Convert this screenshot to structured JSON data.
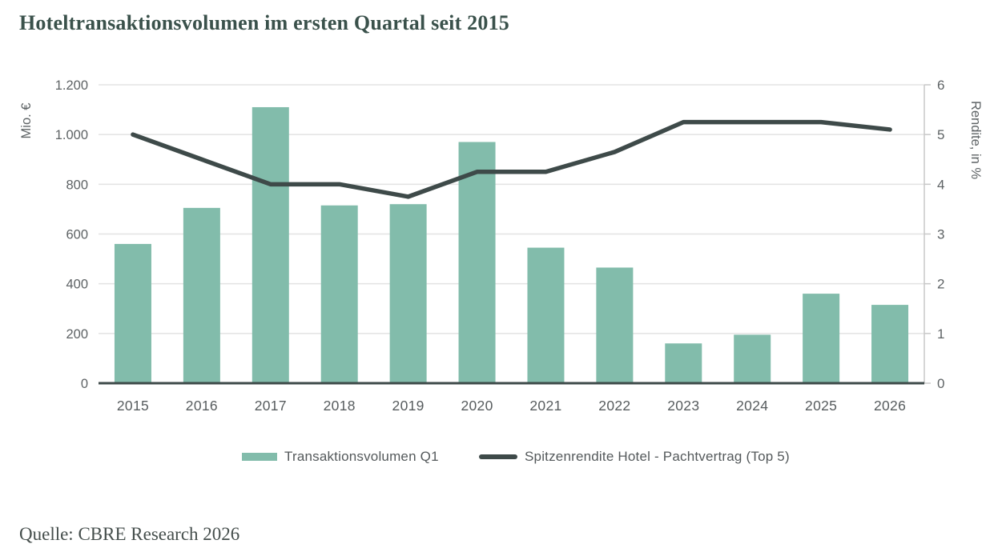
{
  "title": "Hoteltransaktionsvolumen im ersten Quartal seit 2015",
  "source": "Quelle: CBRE Research 2026",
  "colors": {
    "bar": "#82bcab",
    "line": "#3e4a49",
    "grid": "#e3e3e3",
    "axis_baseline": "#3e4a49",
    "right_axis_line": "#c8c8c8",
    "tick_label": "#5e6365",
    "x_label": "#575c5e",
    "legend_text": "#54595b",
    "title_text": "#3a514b",
    "source_text": "#454e4c"
  },
  "chart_data": {
    "type": "bar",
    "subtype": "bar+line combo",
    "title": "Hoteltransaktionsvolumen im ersten Quartal seit 2015",
    "categories": [
      "2015",
      "2016",
      "2017",
      "2018",
      "2019",
      "2020",
      "2021",
      "2022",
      "2023",
      "2024",
      "2025",
      "2026"
    ],
    "series": [
      {
        "name": "Transaktionsvolumen Q1",
        "type": "bar",
        "axis": "left",
        "values": [
          560,
          705,
          1110,
          715,
          720,
          970,
          545,
          465,
          160,
          195,
          360,
          315
        ]
      },
      {
        "name": "Spitzenrendite Hotel - Pachtvertrag (Top 5)",
        "type": "line",
        "axis": "right",
        "values": [
          5.0,
          4.5,
          4.0,
          4.0,
          3.75,
          4.25,
          4.25,
          4.65,
          5.25,
          5.25,
          5.25,
          5.1
        ]
      }
    ],
    "left_axis": {
      "label": "Mio. €",
      "min": 0,
      "max": 1200,
      "ticks": [
        "1.200",
        "1.000",
        "800",
        "600",
        "400",
        "200",
        "0"
      ],
      "tick_values": [
        1200,
        1000,
        800,
        600,
        400,
        200,
        0
      ]
    },
    "right_axis": {
      "label": "Rendite, in %",
      "min": 0,
      "max": 6,
      "ticks": [
        "6",
        "5",
        "4",
        "3",
        "2",
        "1",
        "0"
      ],
      "tick_values": [
        6,
        5,
        4,
        3,
        2,
        1,
        0
      ]
    },
    "grid": true,
    "legend_position": "bottom"
  }
}
